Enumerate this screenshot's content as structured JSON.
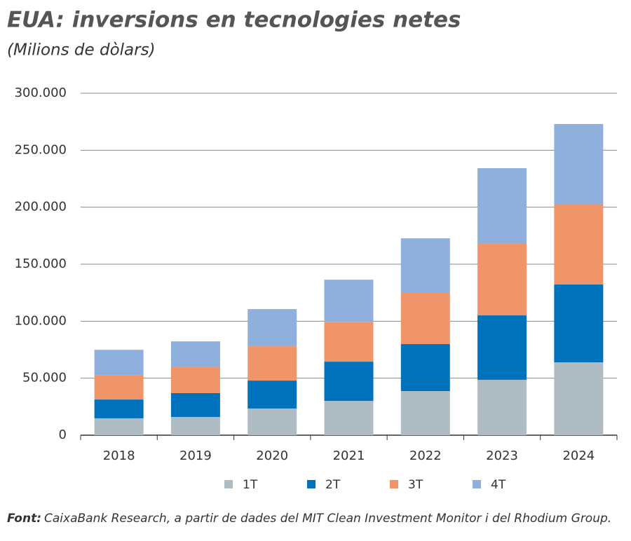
{
  "chart_data": {
    "type": "stacked_bar",
    "title": "EUA: inversions en tecnologies netes",
    "subtitle": "(Milions de dòlars)",
    "categories": [
      "2018",
      "2019",
      "2020",
      "2021",
      "2022",
      "2023",
      "2024"
    ],
    "series": [
      {
        "name": "1T",
        "color": "#b0bcc3",
        "values": [
          14800,
          16000,
          23400,
          30100,
          38700,
          48600,
          63900
        ]
      },
      {
        "name": "2T",
        "color": "#0072bc",
        "values": [
          16500,
          20900,
          24500,
          34400,
          41200,
          56500,
          68300
        ]
      },
      {
        "name": "3T",
        "color": "#f0956a",
        "values": [
          21500,
          23300,
          30100,
          35000,
          44900,
          63300,
          70700
        ]
      },
      {
        "name": "4T",
        "color": "#8fb0dc",
        "values": [
          22100,
          22100,
          32600,
          36900,
          47900,
          65800,
          70100
        ]
      }
    ],
    "ylim": [
      0,
      300000
    ],
    "yticks": [
      0,
      {
        "value": 50000,
        "label": "50.000"
      },
      {
        "value": 100000,
        "label": "100.000"
      },
      {
        "value": 150000,
        "label": "150.000"
      },
      {
        "value": 200000,
        "label": "200.000"
      },
      {
        "value": 250000,
        "label": "250.000"
      },
      {
        "value": 300000,
        "label": "300.000"
      }
    ],
    "grid": true,
    "legend": "bottom",
    "source": {
      "label": "Font:",
      "text": "CaixaBank Research, a partir de dades del MIT Clean Investment Monitor i del Rhodium Group."
    }
  }
}
